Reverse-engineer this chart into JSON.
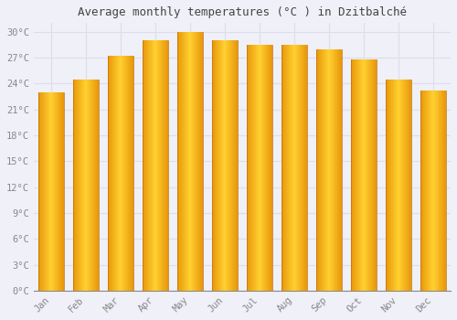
{
  "title": "Average monthly temperatures (°C ) in Dzitbalché",
  "months": [
    "Jan",
    "Feb",
    "Mar",
    "Apr",
    "May",
    "Jun",
    "Jul",
    "Aug",
    "Sep",
    "Oct",
    "Nov",
    "Dec"
  ],
  "values": [
    23.0,
    24.5,
    27.2,
    29.0,
    30.0,
    29.0,
    28.5,
    28.5,
    28.0,
    26.8,
    24.5,
    23.2
  ],
  "bar_color_left": "#E8960A",
  "bar_color_mid": "#FFD030",
  "bar_color_right": "#F0A010",
  "background_color": "#F0F0F8",
  "plot_bg_color": "#F0F0F8",
  "grid_color": "#DDDDEE",
  "ytick_step": 3,
  "ymin": 0,
  "ymax": 31,
  "title_fontsize": 9,
  "tick_fontsize": 7.5,
  "tick_label_color": "#888888",
  "font_family": "monospace",
  "bar_width": 0.75
}
